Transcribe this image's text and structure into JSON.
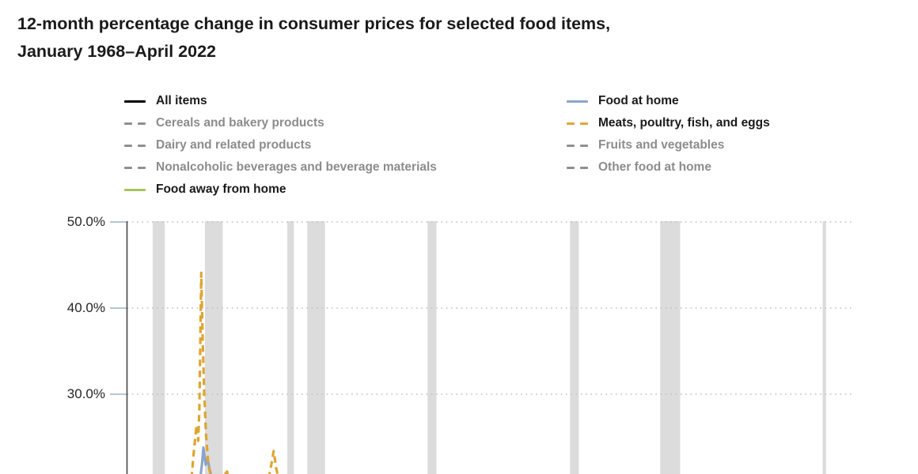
{
  "title": {
    "line1": "12-month percentage change in consumer prices for selected food items,",
    "line2": "January 1968–April 2022"
  },
  "colors": {
    "emphasis_text": "#1a1a1a",
    "muted_text": "#8c8c8c",
    "all_items": "#000000",
    "food_at_home": "#8ba4ca",
    "meats": "#dfa532",
    "food_away_from_home": "#a5c35c",
    "muted_series": "#8f8f8f",
    "recession_band": "#dcdcdc",
    "gridline": "#c2c2c2",
    "axis_line": "#4f4f4f",
    "tick_mark": "#aabfd3",
    "tick_label": "#262626"
  },
  "legend": {
    "columns": [
      {
        "items": [
          {
            "label": "All items",
            "series": "all_items",
            "line": "solid",
            "emphasized": true
          },
          {
            "label": "Cereals and bakery products",
            "series": "muted_series",
            "line": "dashed",
            "emphasized": false
          },
          {
            "label": "Dairy and related products",
            "series": "muted_series",
            "line": "dashed",
            "emphasized": false
          },
          {
            "label": "Nonalcoholic beverages and beverage materials",
            "series": "muted_series",
            "line": "dashed",
            "emphasized": false
          },
          {
            "label": "Food away from home",
            "series": "food_away_from_home",
            "line": "solid",
            "emphasized": true
          }
        ]
      },
      {
        "items": [
          {
            "label": "Food at home",
            "series": "food_at_home",
            "line": "solid",
            "emphasized": true
          },
          {
            "label": "Meats, poultry, fish, and eggs",
            "series": "meats",
            "line": "dashed",
            "emphasized": true
          },
          {
            "label": "Fruits and vegetables",
            "series": "muted_series",
            "line": "dashed",
            "emphasized": false
          },
          {
            "label": "Other food at home",
            "series": "muted_series",
            "line": "dashed",
            "emphasized": false
          }
        ]
      }
    ]
  },
  "chart_data": {
    "type": "line",
    "title": "12-month percentage change in consumer prices for selected food items, January 1968–April 2022",
    "x_unit": "year (decimal)",
    "x_range": [
      1968.0,
      2022.333
    ],
    "y_axis": {
      "ticks": [
        {
          "label": "50.0%",
          "value": 50
        },
        {
          "label": "40.0%",
          "value": 40
        },
        {
          "label": "30.0%",
          "value": 30
        }
      ],
      "gridlines": "dotted",
      "visible_top": 50,
      "visible_bottom_at_crop": 20.7
    },
    "legend_position": "top",
    "recession_bands": [
      [
        1969.92,
        1970.83
      ],
      [
        1973.83,
        1975.17
      ],
      [
        1980.0,
        1980.5
      ],
      [
        1981.5,
        1982.83
      ],
      [
        1990.5,
        1991.17
      ],
      [
        2001.17,
        2001.83
      ],
      [
        2007.92,
        2009.42
      ],
      [
        2020.08,
        2020.33
      ]
    ],
    "series": [
      {
        "name": "All items",
        "color_key": "all_items",
        "dash": false,
        "segments": []
      },
      {
        "name": "Food at home",
        "color_key": "food_at_home",
        "dash": false,
        "segments": [
          [
            [
              1973.48,
              20.2
            ],
            [
              1973.62,
              22.0
            ],
            [
              1973.72,
              23.8
            ],
            [
              1973.89,
              21.8
            ],
            [
              1974.02,
              22.6
            ],
            [
              1974.2,
              21.2
            ],
            [
              1974.35,
              20.2
            ]
          ]
        ]
      },
      {
        "name": "Cereals and bakery products",
        "color_key": "muted_series",
        "dash": true,
        "segments": []
      },
      {
        "name": "Meats, poultry, fish, and eggs",
        "color_key": "meats",
        "dash": true,
        "segments": [
          [
            [
              1972.83,
              20.2
            ],
            [
              1973.0,
              23.3
            ],
            [
              1973.2,
              26.4
            ],
            [
              1973.33,
              24.6
            ],
            [
              1973.42,
              28.5
            ],
            [
              1973.56,
              44.1
            ],
            [
              1973.67,
              36.0
            ],
            [
              1973.78,
              30.0
            ],
            [
              1973.92,
              25.2
            ],
            [
              1974.08,
              22.0
            ],
            [
              1974.3,
              20.2
            ]
          ],
          [
            [
              1975.3,
              20.2
            ],
            [
              1975.45,
              21.3
            ],
            [
              1975.6,
              20.2
            ]
          ],
          [
            [
              1978.6,
              20.2
            ],
            [
              1978.8,
              21.8
            ],
            [
              1978.98,
              23.4
            ],
            [
              1979.17,
              21.4
            ],
            [
              1979.35,
              20.2
            ]
          ]
        ]
      },
      {
        "name": "Dairy and related products",
        "color_key": "muted_series",
        "dash": true,
        "segments": []
      },
      {
        "name": "Fruits and vegetables",
        "color_key": "muted_series",
        "dash": true,
        "segments": []
      },
      {
        "name": "Nonalcoholic beverages and beverage materials",
        "color_key": "muted_series",
        "dash": true,
        "segments": []
      },
      {
        "name": "Other food at home",
        "color_key": "muted_series",
        "dash": true,
        "segments": []
      },
      {
        "name": "Food away from home",
        "color_key": "food_away_from_home",
        "dash": false,
        "segments": []
      }
    ]
  }
}
